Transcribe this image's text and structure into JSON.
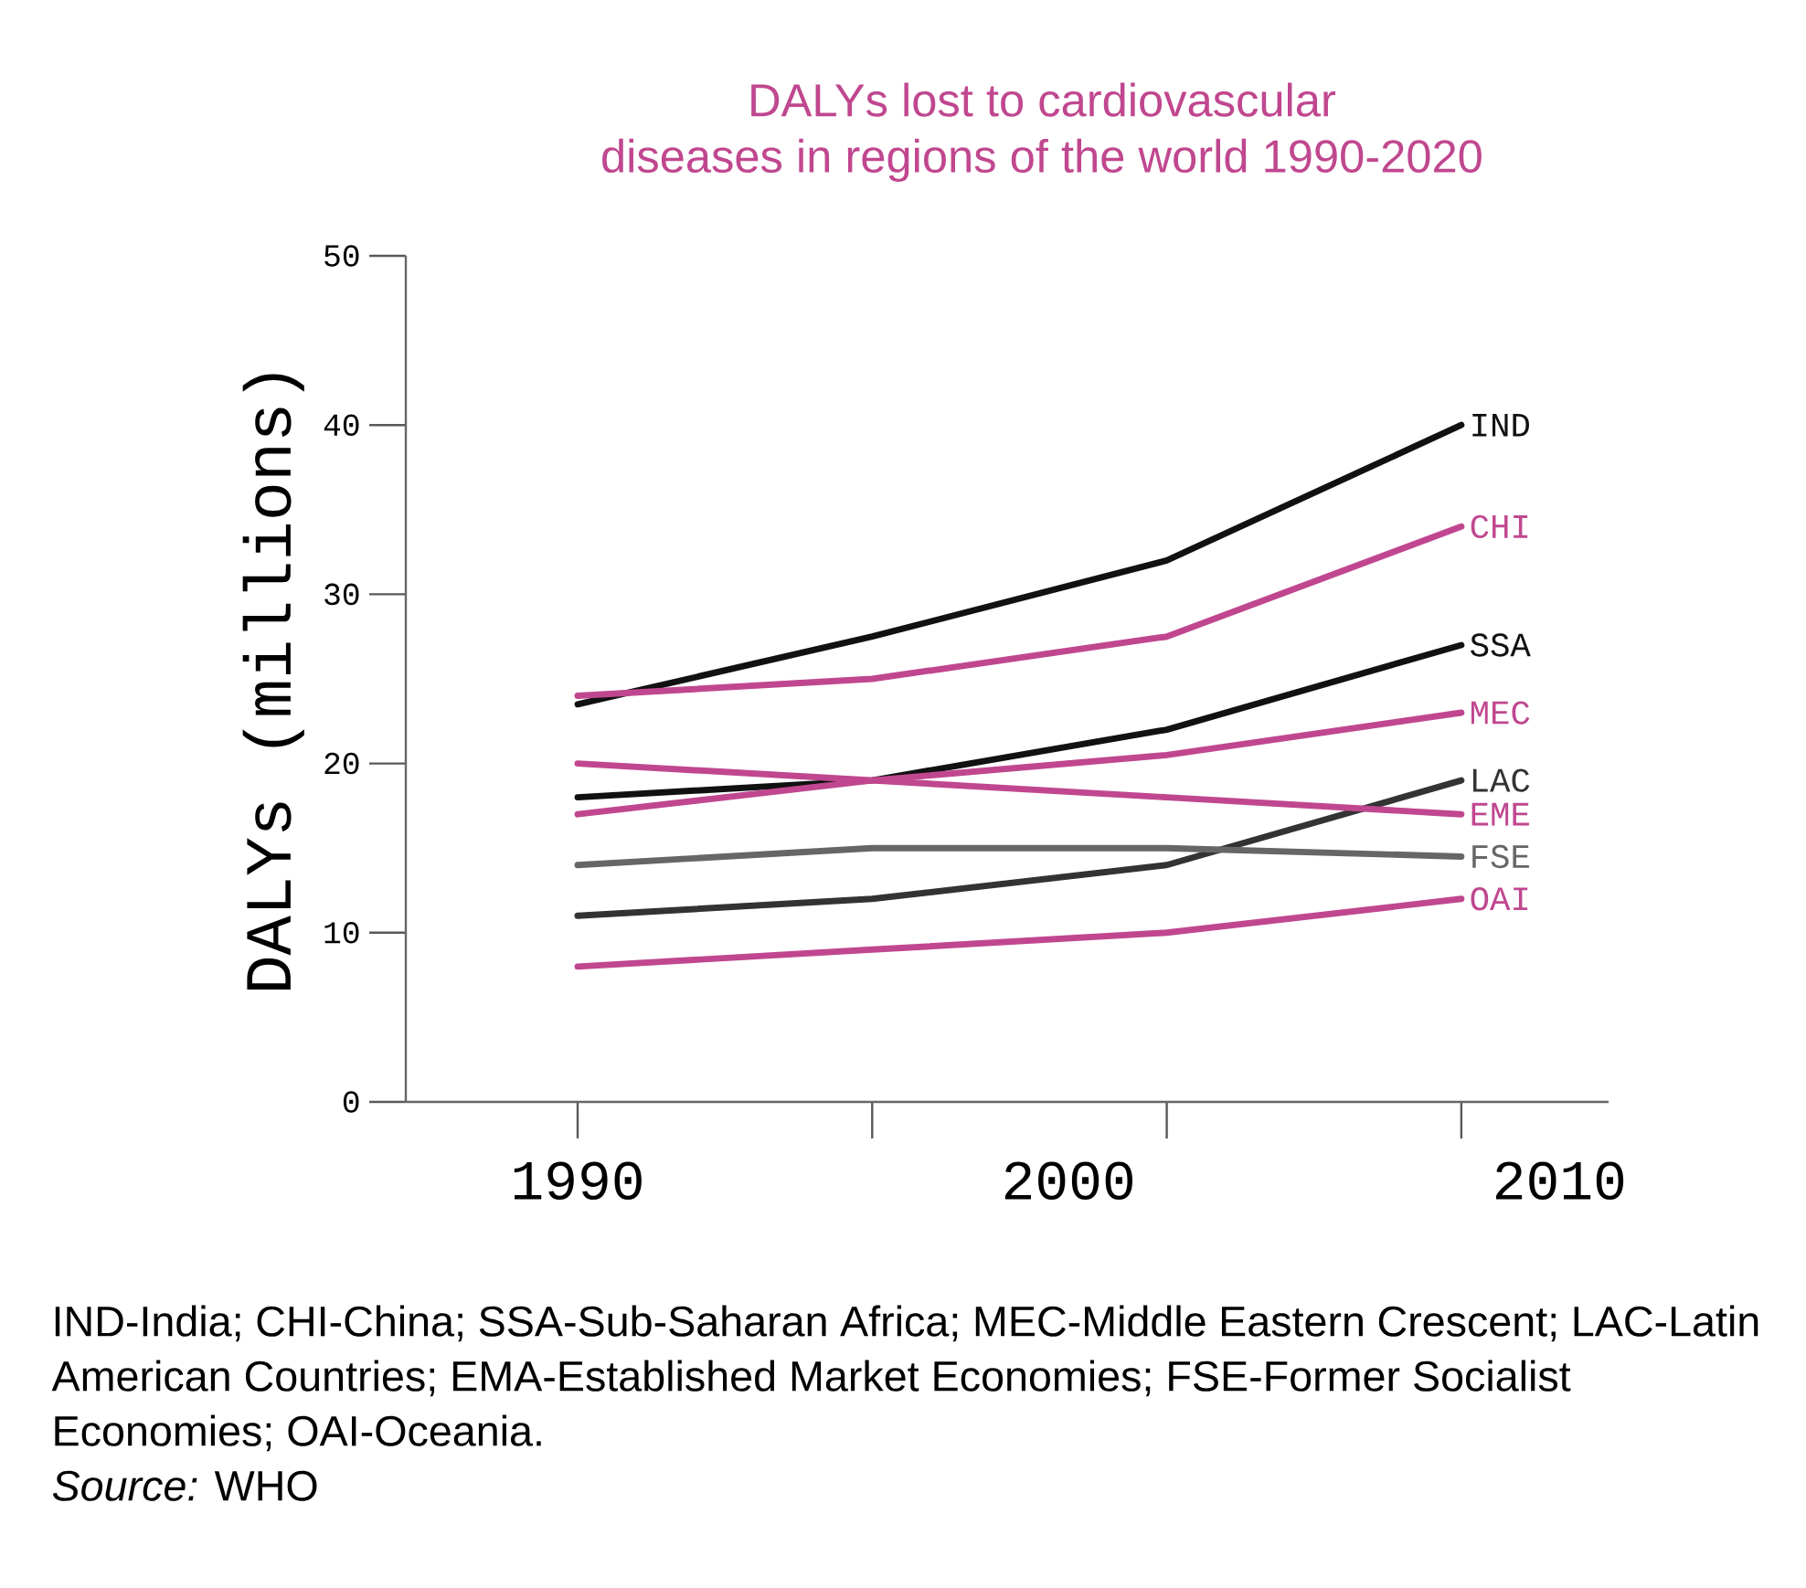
{
  "chart_data": {
    "type": "line",
    "title": "DALYs lost to cardiovascular diseases in regions of the world 1990-2020",
    "ylabel": "DALYs (millions)",
    "x": [
      1990,
      1996,
      2002,
      2008
    ],
    "xlim": [
      1986.5,
      2011
    ],
    "ylim": [
      0,
      50
    ],
    "xticks": [
      1990,
      2000,
      2010
    ],
    "yticks": [
      0,
      10,
      20,
      30,
      40,
      50
    ],
    "marker": "none",
    "line_style": "solid",
    "series": [
      {
        "name": "IND",
        "color": "#111111",
        "values": [
          23.5,
          27.5,
          32,
          40
        ]
      },
      {
        "name": "CHI",
        "color": "#c0478f",
        "values": [
          24,
          25,
          27.5,
          34
        ]
      },
      {
        "name": "SSA",
        "color": "#111111",
        "values": [
          18,
          19,
          22,
          27
        ]
      },
      {
        "name": "MEC",
        "color": "#c0478f",
        "values": [
          17,
          19,
          20.5,
          23
        ]
      },
      {
        "name": "LAC",
        "color": "#333333",
        "values": [
          11,
          12,
          14,
          19
        ]
      },
      {
        "name": "EME",
        "color": "#c0478f",
        "values": [
          20,
          19,
          18,
          17
        ]
      },
      {
        "name": "FSE",
        "color": "#666666",
        "values": [
          14,
          15,
          15,
          14.5
        ]
      },
      {
        "name": "OAI",
        "color": "#c0478f",
        "values": [
          8,
          9,
          10,
          12
        ]
      }
    ],
    "annotations": [
      "IND-India; CHI-China; SSA-Sub-Saharan Africa; MEC-Middle Eastern Crescent; LAC-Latin American Countries; EMA-Established Market Economies; FSE-Former Socialist Economies; OAI-Oceania.",
      "*Source:* WHO"
    ]
  }
}
